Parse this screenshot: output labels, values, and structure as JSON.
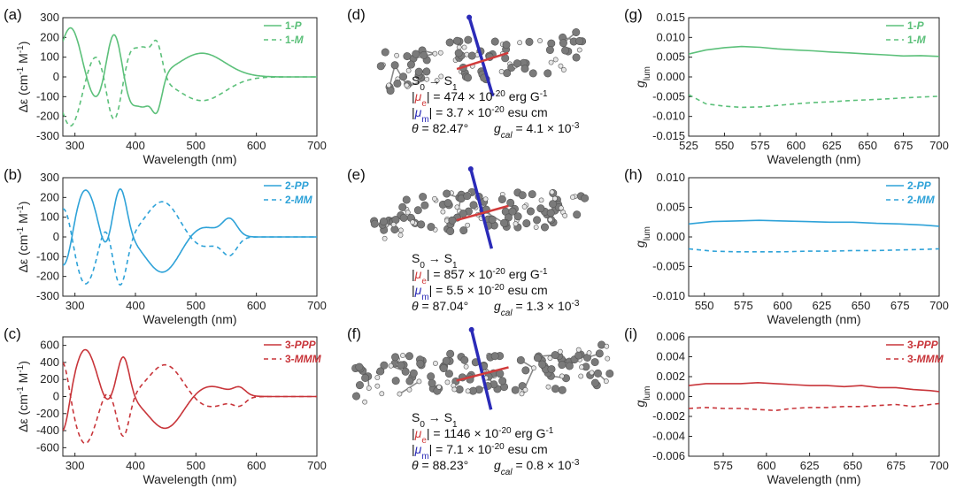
{
  "colors": {
    "green": "#5cc07a",
    "blue": "#2ea2d8",
    "red": "#c8353a",
    "axis": "#222222"
  },
  "chart_data": [
    {
      "id": "a",
      "type": "line",
      "panel_label": "(a)",
      "xlabel": "Wavelength (nm)",
      "ylabel": "Δε (cm-1 M-1)",
      "xlim": [
        280,
        700
      ],
      "ylim": [
        -300,
        300
      ],
      "xticks": [
        300,
        400,
        500,
        600,
        700
      ],
      "yticks": [
        -300,
        -200,
        -100,
        0,
        100,
        200,
        300
      ],
      "legend": [
        "1-P",
        "1-M"
      ],
      "color": "#5cc07a",
      "bands": [
        {
          "c": 293,
          "a": 250,
          "w": 16
        },
        {
          "c": 336,
          "a": -120,
          "w": 15
        },
        {
          "c": 364,
          "a": 240,
          "w": 12
        },
        {
          "c": 394,
          "a": -140,
          "w": 12
        },
        {
          "c": 415,
          "a": -110,
          "w": 9
        },
        {
          "c": 435,
          "a": -190,
          "w": 9
        },
        {
          "c": 510,
          "a": 120,
          "w": 38
        }
      ],
      "series": [
        {
          "name": "1-P",
          "sign": 1,
          "dash": false
        },
        {
          "name": "1-M",
          "sign": -1,
          "dash": true
        }
      ]
    },
    {
      "id": "b",
      "type": "line",
      "panel_label": "(b)",
      "xlabel": "Wavelength (nm)",
      "ylabel": "Δε (cm-1 M-1)",
      "xlim": [
        280,
        700
      ],
      "ylim": [
        -300,
        300
      ],
      "xticks": [
        300,
        400,
        500,
        600,
        700
      ],
      "yticks": [
        -300,
        -200,
        -100,
        0,
        100,
        200,
        300
      ],
      "legend": [
        "2-PP",
        "2-MM"
      ],
      "color": "#2ea2d8",
      "bands": [
        {
          "c": 283,
          "a": -170,
          "w": 12
        },
        {
          "c": 317,
          "a": 240,
          "w": 17
        },
        {
          "c": 350,
          "a": -80,
          "w": 9
        },
        {
          "c": 375,
          "a": 250,
          "w": 11
        },
        {
          "c": 445,
          "a": -180,
          "w": 27
        },
        {
          "c": 510,
          "a": 55,
          "w": 25
        },
        {
          "c": 556,
          "a": 85,
          "w": 12
        }
      ],
      "series": [
        {
          "name": "2-PP",
          "sign": 1,
          "dash": false
        },
        {
          "name": "2-MM",
          "sign": -1,
          "dash": true
        }
      ]
    },
    {
      "id": "c",
      "type": "line",
      "panel_label": "(c)",
      "xlabel": "Wavelength (nm)",
      "ylabel": "Δε (cm-1 M-1)",
      "xlim": [
        280,
        700
      ],
      "ylim": [
        -700,
        700
      ],
      "xticks": [
        300,
        400,
        500,
        600,
        700
      ],
      "yticks": [
        -600,
        -400,
        -200,
        0,
        200,
        400,
        600
      ],
      "legend": [
        "3-PPP",
        "3-MMM"
      ],
      "color": "#c8353a",
      "bands": [
        {
          "c": 280,
          "a": -450,
          "w": 10
        },
        {
          "c": 317,
          "a": 550,
          "w": 17
        },
        {
          "c": 352,
          "a": -100,
          "w": 9
        },
        {
          "c": 380,
          "a": 480,
          "w": 10
        },
        {
          "c": 450,
          "a": -380,
          "w": 28
        },
        {
          "c": 520,
          "a": 130,
          "w": 30
        },
        {
          "c": 572,
          "a": 85,
          "w": 10
        }
      ],
      "series": [
        {
          "name": "3-PPP",
          "sign": 1,
          "dash": false
        },
        {
          "name": "3-MMM",
          "sign": -1,
          "dash": true
        }
      ]
    },
    {
      "id": "g",
      "type": "line",
      "panel_label": "(g)",
      "xlabel": "Wavelength (nm)",
      "ylabel": "g",
      "xlim": [
        525,
        700
      ],
      "ylim": [
        -0.015,
        0.015
      ],
      "xticks": [
        525,
        550,
        575,
        600,
        625,
        650,
        675,
        700
      ],
      "yticks": [
        -0.015,
        -0.01,
        -0.005,
        0,
        0.005,
        0.01,
        0.015
      ],
      "ytick_labels": [
        "-0.015",
        "-0.010",
        "-0.005",
        "0.000",
        "0.005",
        "0.010",
        "0.015"
      ],
      "legend": [
        "1-P",
        "1-M"
      ],
      "color": "#5cc07a",
      "series": [
        {
          "name": "1-P",
          "dash": false,
          "x": [
            525,
            537,
            550,
            562,
            575,
            587,
            600,
            612,
            625,
            637,
            650,
            662,
            675,
            687,
            700
          ],
          "y": [
            0.0058,
            0.0068,
            0.0074,
            0.0077,
            0.0075,
            0.0071,
            0.0068,
            0.0066,
            0.0063,
            0.0061,
            0.0058,
            0.0056,
            0.0053,
            0.0054,
            0.0052
          ]
        },
        {
          "name": "1-M",
          "dash": true,
          "x": [
            525,
            537,
            550,
            562,
            575,
            587,
            600,
            612,
            625,
            637,
            650,
            662,
            675,
            687,
            700
          ],
          "y": [
            -0.0045,
            -0.0068,
            -0.0074,
            -0.0077,
            -0.0076,
            -0.0072,
            -0.0068,
            -0.0065,
            -0.0063,
            -0.006,
            -0.0058,
            -0.0056,
            -0.0053,
            -0.0051,
            -0.0049
          ]
        }
      ]
    },
    {
      "id": "h",
      "type": "line",
      "panel_label": "(h)",
      "xlabel": "Wavelength (nm)",
      "ylabel": "g",
      "xlim": [
        540,
        700
      ],
      "ylim": [
        -0.01,
        0.01
      ],
      "xticks": [
        550,
        575,
        600,
        625,
        650,
        675,
        700
      ],
      "yticks": [
        -0.01,
        -0.005,
        0,
        0.005,
        0.01
      ],
      "ytick_labels": [
        "-0.010",
        "-0.005",
        "0.000",
        "0.005",
        "0.010"
      ],
      "legend": [
        "2-PP",
        "2-MM"
      ],
      "color": "#2ea2d8",
      "series": [
        {
          "name": "2-PP",
          "dash": false,
          "x": [
            540,
            555,
            570,
            585,
            600,
            615,
            630,
            645,
            660,
            675,
            690,
            700
          ],
          "y": [
            0.0022,
            0.0026,
            0.0027,
            0.0028,
            0.0027,
            0.0026,
            0.0025,
            0.0025,
            0.0023,
            0.0022,
            0.002,
            0.0018
          ]
        },
        {
          "name": "2-MM",
          "dash": true,
          "x": [
            540,
            555,
            570,
            585,
            600,
            615,
            630,
            645,
            660,
            675,
            690,
            700
          ],
          "y": [
            -0.002,
            -0.0024,
            -0.0025,
            -0.0025,
            -0.0025,
            -0.0024,
            -0.0024,
            -0.0023,
            -0.0023,
            -0.0022,
            -0.0021,
            -0.002
          ]
        }
      ]
    },
    {
      "id": "i",
      "type": "line",
      "panel_label": "(i)",
      "xlabel": "Wavelength (nm)",
      "ylabel": "g",
      "xlim": [
        555,
        700
      ],
      "ylim": [
        -0.006,
        0.006
      ],
      "xticks": [
        575,
        600,
        625,
        650,
        675,
        700
      ],
      "yticks": [
        -0.006,
        -0.004,
        -0.002,
        0,
        0.002,
        0.004,
        0.006
      ],
      "ytick_labels": [
        "-0.006",
        "-0.004",
        "-0.002",
        "0.000",
        "0.002",
        "0.004",
        "0.006"
      ],
      "legend": [
        "3-PPP",
        "3-MMM"
      ],
      "color": "#c8353a",
      "series": [
        {
          "name": "3-PPP",
          "dash": false,
          "x": [
            555,
            565,
            575,
            585,
            595,
            605,
            615,
            625,
            635,
            645,
            655,
            665,
            675,
            685,
            695,
            700
          ],
          "y": [
            0.0011,
            0.0013,
            0.0013,
            0.0013,
            0.0014,
            0.0013,
            0.0012,
            0.0011,
            0.0011,
            0.001,
            0.0011,
            0.0009,
            0.0009,
            0.0007,
            0.0006,
            0.0005
          ]
        },
        {
          "name": "3-MMM",
          "dash": true,
          "x": [
            555,
            565,
            575,
            585,
            595,
            605,
            615,
            625,
            635,
            645,
            655,
            665,
            675,
            685,
            695,
            700
          ],
          "y": [
            -0.0012,
            -0.0011,
            -0.0012,
            -0.0012,
            -0.0013,
            -0.0014,
            -0.0012,
            -0.0011,
            -0.0011,
            -0.001,
            -0.001,
            -0.0009,
            -0.0008,
            -0.001,
            -0.0008,
            -0.0007
          ]
        }
      ]
    }
  ],
  "molecule_panels": [
    {
      "id": "d",
      "panel_label": "(d)",
      "transition": "S0 → S1",
      "mu_e": "474",
      "mu_m": "3.7",
      "theta": "82.47°",
      "g_cal": "4.1"
    },
    {
      "id": "e",
      "panel_label": "(e)",
      "transition": "S0 → S1",
      "mu_e": "857",
      "mu_m": "5.5",
      "theta": "87.04°",
      "g_cal": "1.3"
    },
    {
      "id": "f",
      "panel_label": "(f)",
      "transition": "S0 → S1",
      "mu_e": "1146",
      "mu_m": "7.1",
      "theta": "88.23°",
      "g_cal": "0.8"
    }
  ],
  "labels": {
    "e_unit": "× 10-20 erg G-1",
    "m_unit": "× 10-20 esu cm",
    "theta_sym": "θ",
    "g_sym": "g",
    "g_sub": "cal",
    "g_unit": "× 10-3",
    "mu": "μ",
    "mu_e_sub": "e",
    "mu_m_sub": "m",
    "glum_sub": "lum"
  }
}
